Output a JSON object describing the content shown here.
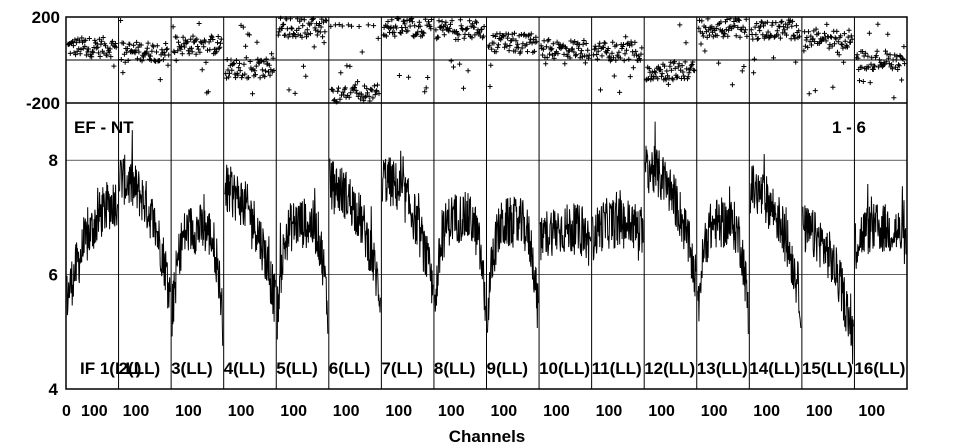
{
  "chart_data": {
    "type": "line",
    "title": "",
    "baseline_label": "EF - NT",
    "panel_range_label": "1 - 6",
    "xlabel": "Channels",
    "phase_ylim": [
      -200,
      200
    ],
    "phase_yticks": [
      "200",
      "-200"
    ],
    "amp_ylim": [
      4,
      9
    ],
    "amp_yticks": [
      "8",
      "6",
      "4"
    ],
    "x_tick_labels_first": [
      "0",
      "100"
    ],
    "x_tick_labels": [
      "100"
    ],
    "x_tick_label_last": "100",
    "channels_per_if": 128,
    "ifs": [
      {
        "label": "IF 1(LL)",
        "amp_level": 7.0,
        "amp_shape": "rise",
        "phase_center": 60
      },
      {
        "label": "2(LL)",
        "amp_level": 7.2,
        "amp_shape": "fall",
        "phase_center": 40
      },
      {
        "label": "3(LL)",
        "amp_level": 6.8,
        "amp_shape": "hump",
        "phase_center": 70
      },
      {
        "label": "4(LL)",
        "amp_level": 7.0,
        "amp_shape": "fall",
        "phase_center": -40
      },
      {
        "label": "5(LL)",
        "amp_level": 6.9,
        "amp_shape": "hump",
        "phase_center": 150
      },
      {
        "label": "6(LL)",
        "amp_level": 7.1,
        "amp_shape": "fall",
        "phase_center": -160
      },
      {
        "label": "7(LL)",
        "amp_level": 7.2,
        "amp_shape": "fall",
        "phase_center": 150
      },
      {
        "label": "8(LL)",
        "amp_level": 7.0,
        "amp_shape": "hump",
        "phase_center": 140
      },
      {
        "label": "9(LL)",
        "amp_level": 6.9,
        "amp_shape": "hump",
        "phase_center": 80
      },
      {
        "label": "10(LL)",
        "amp_level": 6.8,
        "amp_shape": "flat",
        "phase_center": 50
      },
      {
        "label": "11(LL)",
        "amp_level": 6.9,
        "amp_shape": "flat",
        "phase_center": 40
      },
      {
        "label": "12(LL)",
        "amp_level": 7.4,
        "amp_shape": "fall",
        "phase_center": -50
      },
      {
        "label": "13(LL)",
        "amp_level": 6.9,
        "amp_shape": "hump",
        "phase_center": 150
      },
      {
        "label": "14(LL)",
        "amp_level": 7.0,
        "amp_shape": "fall",
        "phase_center": 140
      },
      {
        "label": "15(LL)",
        "amp_level": 6.3,
        "amp_shape": "fall",
        "phase_center": 100
      },
      {
        "label": "16(LL)",
        "amp_level": 6.8,
        "amp_shape": "flat",
        "phase_center": 0
      }
    ]
  }
}
